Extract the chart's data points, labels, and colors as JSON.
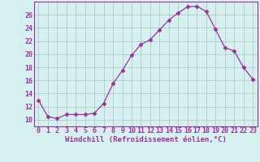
{
  "x": [
    0,
    1,
    2,
    3,
    4,
    5,
    6,
    7,
    8,
    9,
    10,
    11,
    12,
    13,
    14,
    15,
    16,
    17,
    18,
    19,
    20,
    21,
    22,
    23
  ],
  "y": [
    13,
    10.5,
    10.2,
    10.8,
    10.8,
    10.8,
    11.0,
    12.5,
    15.5,
    17.5,
    19.8,
    21.5,
    22.2,
    23.7,
    25.2,
    26.3,
    27.2,
    27.3,
    26.5,
    23.8,
    21.0,
    20.5,
    18.0,
    16.2
  ],
  "line_color": "#993399",
  "marker": "D",
  "marker_size": 2.5,
  "bg_color": "#d6f0f0",
  "grid_color": "#b0c8c8",
  "xlabel": "Windchill (Refroidissement éolien,°C)",
  "xlabel_fontsize": 6.5,
  "ylim": [
    9,
    28
  ],
  "xlim": [
    -0.5,
    23.5
  ],
  "yticks": [
    10,
    12,
    14,
    16,
    18,
    20,
    22,
    24,
    26
  ],
  "xticks": [
    0,
    1,
    2,
    3,
    4,
    5,
    6,
    7,
    8,
    9,
    10,
    11,
    12,
    13,
    14,
    15,
    16,
    17,
    18,
    19,
    20,
    21,
    22,
    23
  ],
  "tick_fontsize": 6.0
}
